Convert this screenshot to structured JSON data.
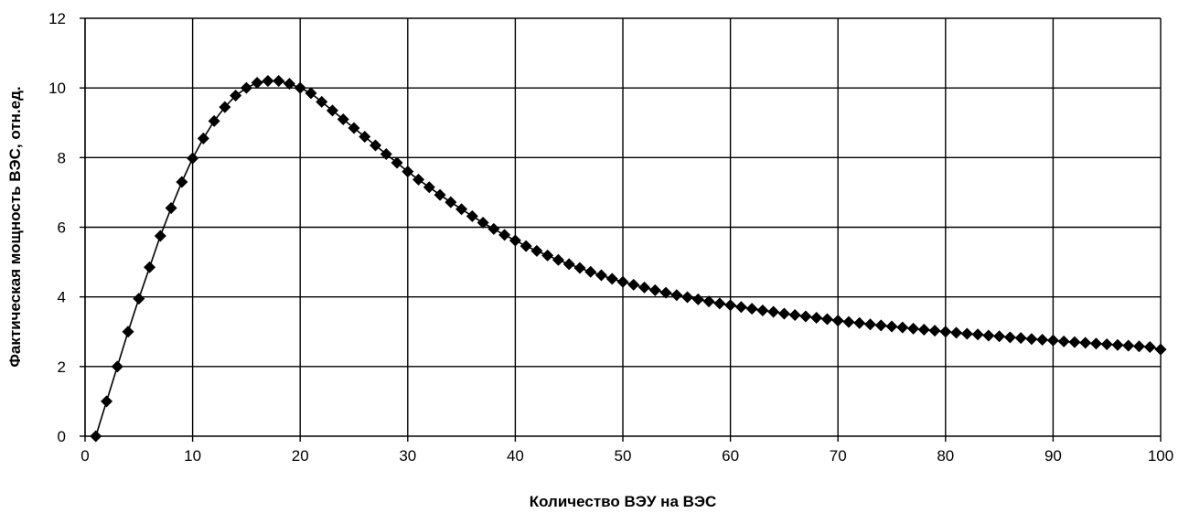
{
  "chart_data": {
    "type": "scatter",
    "title": "",
    "xlabel": "Количество ВЭУ на ВЭС",
    "ylabel": "Фактическая мощность ВЭС, отн.ед.",
    "xlim": [
      0,
      100
    ],
    "ylim": [
      0,
      12
    ],
    "xticks": [
      0,
      10,
      20,
      30,
      40,
      50,
      60,
      70,
      80,
      90,
      100
    ],
    "yticks": [
      0,
      2,
      4,
      6,
      8,
      10,
      12
    ],
    "grid": true,
    "legend": "none",
    "marker": "diamond",
    "line": true,
    "colors": {
      "series": "#000000",
      "grid": "#000000",
      "background": "#ffffff"
    },
    "series": [
      {
        "x": [
          1,
          2,
          3,
          4,
          5,
          6,
          7,
          8,
          9,
          10,
          11,
          12,
          13,
          14,
          15,
          16,
          17,
          18,
          19,
          20,
          21,
          22,
          23,
          24,
          25,
          26,
          27,
          28,
          29,
          30,
          31,
          32,
          33,
          34,
          35,
          36,
          37,
          38,
          39,
          40,
          41,
          42,
          43,
          44,
          45,
          46,
          47,
          48,
          49,
          50,
          51,
          52,
          53,
          54,
          55,
          56,
          57,
          58,
          59,
          60,
          61,
          62,
          63,
          64,
          65,
          66,
          67,
          68,
          69,
          70,
          71,
          72,
          73,
          74,
          75,
          76,
          77,
          78,
          79,
          80,
          81,
          82,
          83,
          84,
          85,
          86,
          87,
          88,
          89,
          90,
          91,
          92,
          93,
          94,
          95,
          96,
          97,
          98,
          99,
          100
        ],
        "y": [
          0.0,
          1.0,
          2.0,
          3.0,
          3.95,
          4.85,
          5.75,
          6.55,
          7.3,
          7.98,
          8.55,
          9.05,
          9.45,
          9.78,
          10.0,
          10.15,
          10.2,
          10.2,
          10.12,
          10.0,
          9.85,
          9.6,
          9.35,
          9.1,
          8.85,
          8.6,
          8.35,
          8.1,
          7.85,
          7.6,
          7.37,
          7.15,
          6.93,
          6.72,
          6.52,
          6.32,
          6.13,
          5.95,
          5.78,
          5.62,
          5.46,
          5.32,
          5.19,
          5.06,
          4.94,
          4.83,
          4.72,
          4.62,
          4.52,
          4.43,
          4.35,
          4.27,
          4.19,
          4.12,
          4.05,
          3.99,
          3.93,
          3.87,
          3.81,
          3.76,
          3.71,
          3.66,
          3.61,
          3.57,
          3.52,
          3.48,
          3.44,
          3.4,
          3.36,
          3.32,
          3.28,
          3.25,
          3.21,
          3.18,
          3.15,
          3.12,
          3.09,
          3.06,
          3.03,
          3.0,
          2.97,
          2.94,
          2.92,
          2.89,
          2.87,
          2.84,
          2.82,
          2.79,
          2.77,
          2.75,
          2.72,
          2.7,
          2.68,
          2.66,
          2.64,
          2.62,
          2.6,
          2.58,
          2.56,
          2.49
        ]
      }
    ]
  }
}
